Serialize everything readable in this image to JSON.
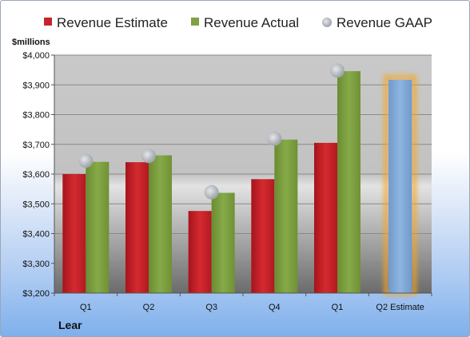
{
  "chart_data": {
    "type": "bar",
    "categories": [
      "Q1",
      "Q2",
      "Q3",
      "Q4",
      "Q1",
      "Q2 Estimate"
    ],
    "series": [
      {
        "name": "Revenue Estimate",
        "color": "#c8232b",
        "values": [
          3600,
          3640,
          3476,
          3583,
          3705,
          null
        ]
      },
      {
        "name": "Revenue Actual",
        "color": "#7ea241",
        "values": [
          3641,
          3663,
          3537,
          3716,
          3946,
          null
        ]
      },
      {
        "name": "Revenue GAAP",
        "color": "#b4b8c0",
        "marker": "circle",
        "values": [
          3645,
          3661,
          3539,
          3719,
          3948,
          null
        ]
      }
    ],
    "estimate_bar": {
      "category": "Q2 Estimate",
      "value": 3917,
      "color": "#7fa8d8",
      "glow_color": "#f5a623"
    },
    "ylabel": "$millions",
    "ylim": [
      3200,
      4000
    ],
    "yticks": [
      3200,
      3300,
      3400,
      3500,
      3600,
      3700,
      3800,
      3900,
      4000
    ],
    "ytick_labels": [
      "$3,200",
      "$3,300",
      "$3,400",
      "$3,500",
      "$3,600",
      "$3,700",
      "$3,800",
      "$3,900",
      "$4,000"
    ],
    "legend_position": "top",
    "grid": true,
    "company": "Lear"
  }
}
